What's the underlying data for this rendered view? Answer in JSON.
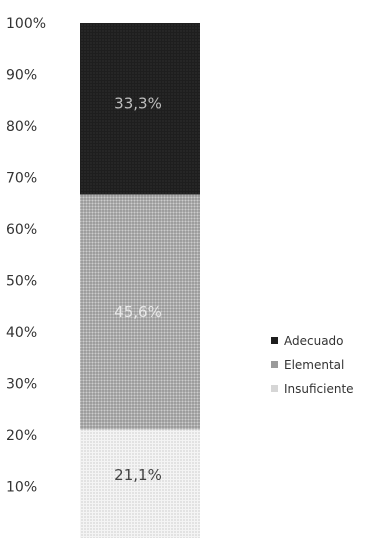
{
  "chart_data": {
    "type": "bar",
    "stacked": true,
    "categories": [
      ""
    ],
    "series": [
      {
        "name": "Insuficiente",
        "values": [
          21.1
        ],
        "label": "21,1%",
        "color": "#e6e6e6",
        "pattern": "light-dots"
      },
      {
        "name": "Elemental",
        "values": [
          45.6
        ],
        "label": "45,6%",
        "color": "#a9a9a9",
        "pattern": "medium-dots"
      },
      {
        "name": "Adecuado",
        "values": [
          33.3
        ],
        "label": "33,3%",
        "color": "#1c1c1c",
        "pattern": "solid-dark"
      }
    ],
    "yticks": [
      "10%",
      "20%",
      "30%",
      "40%",
      "50%",
      "60%",
      "70%",
      "80%",
      "90%",
      "100%"
    ],
    "ylim": [
      0,
      100
    ],
    "legend_position": "right",
    "legend_order": [
      "Adecuado",
      "Elemental",
      "Insuficiente"
    ],
    "grid": false,
    "title": "",
    "xlabel": "",
    "ylabel": ""
  }
}
